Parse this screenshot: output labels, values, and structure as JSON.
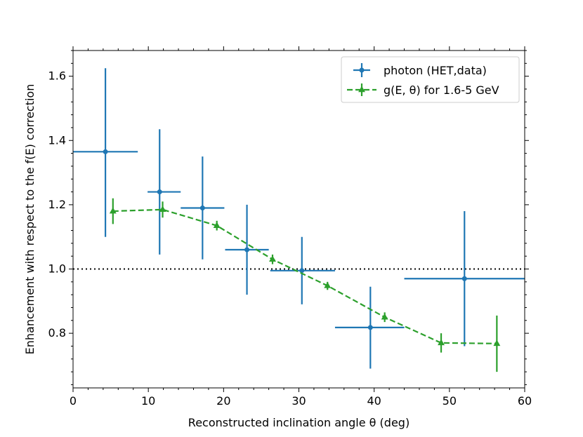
{
  "chart_data": {
    "type": "scatter",
    "xlabel": "Reconstructed inclination angle θ (deg)",
    "ylabel": "Enhancement with respect to the f(E) correction",
    "xlim": [
      0,
      60
    ],
    "ylim": [
      0.63,
      1.68
    ],
    "xticks": [
      0,
      10,
      20,
      30,
      40,
      50,
      60
    ],
    "yticks": [
      0.8,
      1.0,
      1.2,
      1.4,
      1.6
    ],
    "xticks_text": [
      "0",
      "10",
      "20",
      "30",
      "40",
      "50",
      "60"
    ],
    "yticks_text": [
      "0.8",
      "1.0",
      "1.2",
      "1.4",
      "1.6"
    ],
    "reference_line": {
      "y": 1.0,
      "style": "dotted",
      "color": "#000000"
    },
    "legend_position": "top-right",
    "series": [
      {
        "name": "photon (HET,data)",
        "color": "#1f77b4",
        "marker": "circle",
        "line": "none",
        "points": [
          {
            "x": 4.3,
            "xerr_low": 4.3,
            "xerr_high": 4.3,
            "y": 1.365,
            "y_low": 1.1,
            "y_high": 1.625
          },
          {
            "x": 11.5,
            "xerr_low": 1.6,
            "xerr_high": 2.8,
            "y": 1.24,
            "y_low": 1.045,
            "y_high": 1.435
          },
          {
            "x": 17.2,
            "xerr_low": 2.9,
            "xerr_high": 2.9,
            "y": 1.19,
            "y_low": 1.03,
            "y_high": 1.35
          },
          {
            "x": 23.1,
            "xerr_low": 2.9,
            "xerr_high": 2.9,
            "y": 1.06,
            "y_low": 0.92,
            "y_high": 1.2
          },
          {
            "x": 30.4,
            "xerr_low": 4.2,
            "xerr_high": 4.4,
            "y": 0.995,
            "y_low": 0.89,
            "y_high": 1.1
          },
          {
            "x": 39.5,
            "xerr_low": 4.7,
            "xerr_high": 4.5,
            "y": 0.818,
            "y_low": 0.69,
            "y_high": 0.945
          },
          {
            "x": 52.0,
            "xerr_low": 8.0,
            "xerr_high": 8.0,
            "y": 0.97,
            "y_low": 0.76,
            "y_high": 1.18
          }
        ]
      },
      {
        "name": "g(E, θ) for 1.6-5 GeV",
        "color": "#2ca02c",
        "marker": "triangle",
        "line": "dashed",
        "points": [
          {
            "x": 5.3,
            "xerr_low": 0.2,
            "xerr_high": 0.2,
            "y": 1.18,
            "y_low": 1.14,
            "y_high": 1.22
          },
          {
            "x": 11.9,
            "xerr_low": 0.2,
            "xerr_high": 0.2,
            "y": 1.185,
            "y_low": 1.16,
            "y_high": 1.21
          },
          {
            "x": 19.1,
            "xerr_low": 0.2,
            "xerr_high": 0.2,
            "y": 1.135,
            "y_low": 1.12,
            "y_high": 1.15
          },
          {
            "x": 26.5,
            "xerr_low": 0.2,
            "xerr_high": 0.2,
            "y": 1.03,
            "y_low": 1.015,
            "y_high": 1.045
          },
          {
            "x": 33.8,
            "xerr_low": 0.2,
            "xerr_high": 0.2,
            "y": 0.948,
            "y_low": 0.935,
            "y_high": 0.96
          },
          {
            "x": 41.4,
            "xerr_low": 0.2,
            "xerr_high": 0.2,
            "y": 0.85,
            "y_low": 0.835,
            "y_high": 0.865
          },
          {
            "x": 48.9,
            "xerr_low": 0.2,
            "xerr_high": 0.2,
            "y": 0.77,
            "y_low": 0.74,
            "y_high": 0.8
          },
          {
            "x": 56.3,
            "xerr_low": 0.2,
            "xerr_high": 0.2,
            "y": 0.768,
            "y_low": 0.68,
            "y_high": 0.855
          }
        ]
      }
    ]
  }
}
